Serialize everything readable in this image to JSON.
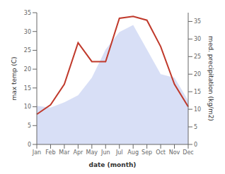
{
  "chart_data": {
    "type": "line",
    "xlabel": "date (month)",
    "ylabel": "max temp (C)",
    "y2label": "med. precipitation (kg/m2)",
    "categories": [
      "Jan",
      "Feb",
      "Mar",
      "Apr",
      "May",
      "Jun",
      "Jul",
      "Aug",
      "Sep",
      "Oct",
      "Nov",
      "Dec"
    ],
    "series": [
      {
        "type": "area",
        "axis": "y2",
        "color": "#b8c4ee",
        "values": [
          11,
          10.5,
          12,
          14,
          19,
          27,
          32,
          34,
          27,
          20,
          19,
          12.5
        ]
      },
      {
        "type": "line",
        "axis": "y",
        "color": "#c0392b",
        "marker": "none",
        "values": [
          8,
          10.5,
          16,
          27,
          22,
          22,
          33.5,
          34,
          33,
          26,
          16,
          10
        ]
      }
    ],
    "ylim": [
      0,
      35
    ],
    "yticks": [
      0,
      5,
      10,
      15,
      20,
      25,
      30,
      35
    ],
    "y2lim": [
      0,
      37.5
    ],
    "y2ticks": [
      0,
      5,
      10,
      15,
      20,
      25,
      30,
      35
    ],
    "grid": false
  }
}
